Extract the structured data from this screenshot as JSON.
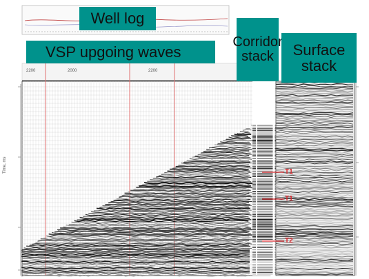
{
  "labels": {
    "well_log": "Well log",
    "vsp_upgoing": "VSP upgoing waves",
    "corridor_line1": "Corridor",
    "corridor_line2": "stack",
    "surface_line1": "Surface",
    "surface_line2": "stack"
  },
  "horizons": {
    "t1a": "T1",
    "t1b": "T1",
    "t2": "T2"
  },
  "axis": {
    "top_left_tick": "2200",
    "top_mid_tick": "2000",
    "top_right_tick": "2200",
    "left_label": "Time, ms"
  },
  "colors": {
    "label_bg": "#00928c",
    "horizon": "#d8262b",
    "red_grid": "#e07070"
  }
}
